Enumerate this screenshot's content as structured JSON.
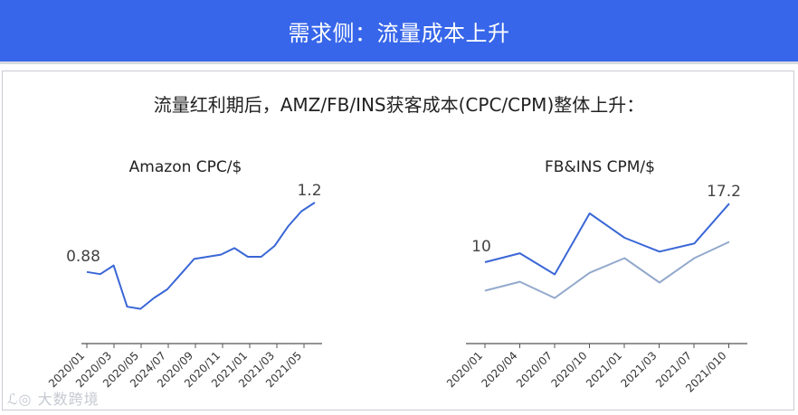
{
  "header": {
    "title": "需求侧：流量成本上升"
  },
  "subtitle": "流量红利期后，AMZ/FB/INS获客成本(CPC/CPM)整体上升：",
  "watermark": "大数跨境",
  "colors": {
    "header_bg": "#3766ea",
    "series_primary": "#3a67d6",
    "series_secondary": "#93a9cc"
  },
  "chart_data": [
    {
      "type": "line",
      "title": "Amazon CPC/$",
      "tick_labels": [
        "2020/01",
        "2020/03",
        "2020/05",
        "2024/07",
        "2020/09",
        "2020/11",
        "2021/01",
        "2021/03",
        "2021/05"
      ],
      "series": [
        {
          "values": [
            0.88,
            0.87,
            0.91,
            0.72,
            0.71,
            0.76,
            0.8,
            0.87,
            0.94,
            0.95,
            0.96,
            0.99,
            0.95,
            0.95,
            1.0,
            1.09,
            1.16,
            1.2
          ],
          "first_label": "0.88",
          "last_label": "1.2"
        }
      ],
      "ylim": [
        0.55,
        1.3
      ]
    },
    {
      "type": "line",
      "title": "FB&INS CPM/$",
      "tick_labels": [
        "2020/01",
        "2020/04",
        "2020/07",
        "2020/10",
        "2021/01",
        "2021/03",
        "2021/07",
        "2021/010"
      ],
      "series": [
        {
          "values": [
            10.0,
            11.1,
            8.5,
            16.0,
            13.0,
            11.3,
            12.3,
            17.2
          ],
          "first_label": "10",
          "last_label": "17.2"
        },
        {
          "values": [
            6.5,
            7.6,
            5.6,
            8.7,
            10.5,
            7.5,
            10.5,
            12.5
          ]
        }
      ],
      "ylim": [
        0,
        20
      ]
    }
  ]
}
